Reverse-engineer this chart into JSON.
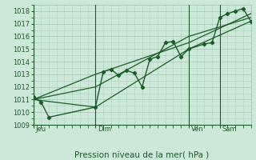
{
  "background_color": "#cce8d8",
  "grid_color": "#aaccba",
  "line_color": "#1a5c28",
  "title": "Pression niveau de la mer( hPa )",
  "ylim": [
    1009,
    1018.5
  ],
  "yticks": [
    1009,
    1010,
    1011,
    1012,
    1013,
    1014,
    1015,
    1016,
    1017,
    1018
  ],
  "xlim": [
    0,
    84
  ],
  "day_ticks": [
    0,
    24,
    60,
    72
  ],
  "day_labels": [
    "Jeu",
    "Dim",
    "Ven",
    "Sam"
  ],
  "series1_x": [
    0,
    3,
    6,
    24,
    27,
    30,
    33,
    36,
    39,
    42,
    45,
    48,
    51,
    54,
    57,
    60,
    66,
    69,
    72,
    75,
    78,
    81,
    84
  ],
  "series1_y": [
    1011.2,
    1010.8,
    1009.6,
    1010.4,
    1013.2,
    1013.4,
    1012.9,
    1013.3,
    1013.1,
    1012.0,
    1014.2,
    1014.4,
    1015.5,
    1015.6,
    1014.4,
    1015.0,
    1015.4,
    1015.5,
    1017.5,
    1017.8,
    1018.0,
    1018.2,
    1017.2
  ],
  "series2_x": [
    0,
    24,
    60,
    84
  ],
  "series2_y": [
    1011.0,
    1010.4,
    1015.0,
    1017.2
  ],
  "series3_x": [
    0,
    24,
    60,
    84
  ],
  "series3_y": [
    1011.0,
    1013.0,
    1015.5,
    1017.8
  ],
  "series4_x": [
    0,
    24,
    60,
    84
  ],
  "series4_y": [
    1011.0,
    1012.0,
    1016.0,
    1017.5
  ],
  "vline_positions": [
    0,
    24,
    60,
    72
  ]
}
